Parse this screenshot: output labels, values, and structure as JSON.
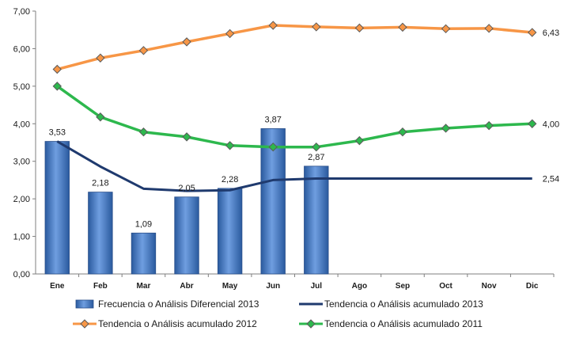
{
  "chart_data": {
    "type": "bar",
    "categories": [
      "Ene",
      "Feb",
      "Mar",
      "Abr",
      "May",
      "Jun",
      "Jul",
      "Ago",
      "Sep",
      "Oct",
      "Nov",
      "Dic"
    ],
    "ylim": [
      0,
      7
    ],
    "yticks": [
      "0,00",
      "1,00",
      "2,00",
      "3,00",
      "4,00",
      "5,00",
      "6,00",
      "7,00"
    ],
    "grid": false,
    "legend_position": "bottom",
    "series": [
      {
        "name": "Frecuencia o Análisis Diferencial 2013",
        "kind": "bar",
        "color": "#3d6fb6",
        "values": [
          3.53,
          2.18,
          1.09,
          2.05,
          2.28,
          3.87,
          2.87,
          null,
          null,
          null,
          null,
          null
        ],
        "labels": [
          "3,53",
          "2,18",
          "1,09",
          "2,05",
          "2,28",
          "3,87",
          "2,87",
          "",
          "",
          "",
          "",
          ""
        ]
      },
      {
        "name": "Tendencia o Análisis acumulado 2013",
        "kind": "line",
        "color": "#1f3a6e",
        "values": [
          3.53,
          2.86,
          2.27,
          2.21,
          2.23,
          2.5,
          2.54,
          2.54,
          2.54,
          2.54,
          2.54,
          2.54
        ],
        "end_label": "2,54"
      },
      {
        "name": "Tendencia o Análisis acumulado 2012",
        "kind": "line-marker",
        "color": "#f79646",
        "values": [
          5.45,
          5.75,
          5.95,
          6.18,
          6.4,
          6.62,
          6.58,
          6.55,
          6.57,
          6.53,
          6.54,
          6.43
        ],
        "end_label": "6,43"
      },
      {
        "name": "Tendencia o Análisis acumulado 2011",
        "kind": "line-marker",
        "color": "#2db84d",
        "values": [
          5.0,
          4.18,
          3.78,
          3.65,
          3.42,
          3.38,
          3.38,
          3.55,
          3.78,
          3.88,
          3.95,
          4.0
        ],
        "end_label": "4,00"
      }
    ]
  }
}
